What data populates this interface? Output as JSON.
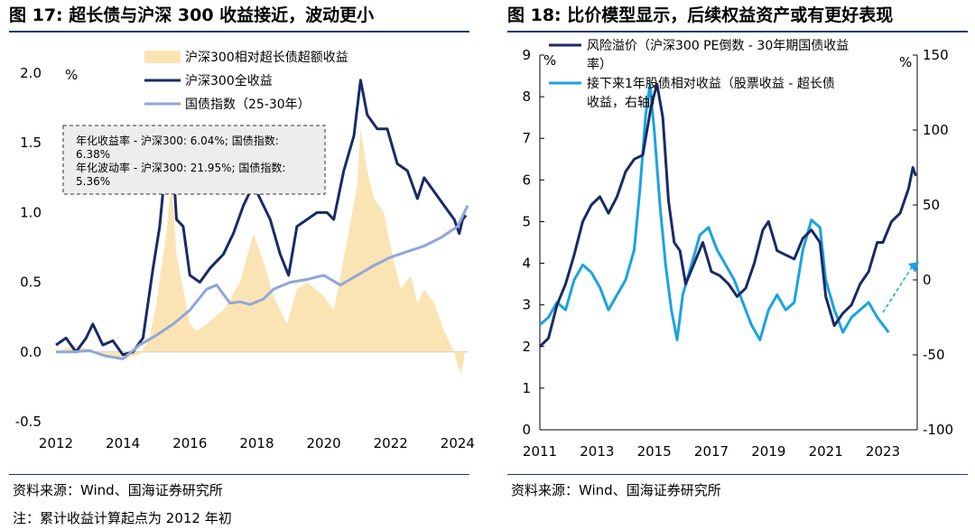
{
  "left": {
    "title": "图 17:  超长债与沪深 300 收益接近，波动更小",
    "source": "资料来源：Wind、国海证券研究所",
    "note": "注：累计收益计算起点为 2012 年初",
    "unit_label": "%",
    "annotation": [
      "年化收益率 - 沪深300:  6.04%;  国债指数:",
      "6.38%",
      "年化波动率 - 沪深300:  21.95%;  国债指数:",
      "5.36%"
    ]
  },
  "right": {
    "title": "图 18:  比价模型显示，后续权益资产或有更好表现",
    "source": "资料来源：Wind、国海证券研究所",
    "unit_left": "%",
    "unit_right": "%"
  },
  "colors": {
    "navy": "#1a2a66",
    "cyan": "#1aa3e0",
    "periwinkle": "#8fa6d8",
    "beige": "#fbe4b4",
    "rule": "#1f3a6e"
  },
  "chart_data": [
    {
      "type": "line",
      "xlabel": "",
      "ylabel": "%",
      "x_ticks": [
        "2012",
        "2014",
        "2016",
        "2018",
        "2020",
        "2022",
        "2024"
      ],
      "y_ticks": [
        "-0.5",
        "0.0",
        "0.5",
        "1.0",
        "1.5",
        "2.0"
      ],
      "xlim": [
        2012.0,
        2024.3
      ],
      "ylim": [
        -0.5,
        2.0
      ],
      "legend_position": "top-center",
      "series": [
        {
          "name": "沪深300相对超长债超额收益",
          "style": "area",
          "x": [
            2012.0,
            2012.5,
            2013.0,
            2013.5,
            2014.0,
            2014.5,
            2014.8,
            2015.0,
            2015.3,
            2015.45,
            2015.6,
            2015.8,
            2016.0,
            2016.2,
            2016.5,
            2017.0,
            2017.5,
            2017.9,
            2018.2,
            2018.5,
            2018.9,
            2019.2,
            2019.5,
            2020.0,
            2020.3,
            2020.7,
            2021.0,
            2021.1,
            2021.3,
            2021.5,
            2021.8,
            2022.0,
            2022.3,
            2022.6,
            2022.8,
            2023.0,
            2023.3,
            2023.6,
            2023.9,
            2024.0,
            2024.1,
            2024.2
          ],
          "values": [
            0.0,
            0.05,
            0.02,
            -0.02,
            -0.05,
            -0.02,
            0.1,
            0.35,
            0.85,
            1.25,
            0.7,
            0.45,
            0.2,
            0.15,
            0.2,
            0.3,
            0.5,
            0.85,
            0.65,
            0.4,
            0.2,
            0.45,
            0.5,
            0.4,
            0.3,
            0.8,
            1.2,
            1.6,
            1.3,
            1.1,
            1.0,
            0.75,
            0.45,
            0.55,
            0.35,
            0.45,
            0.35,
            0.15,
            0.0,
            -0.1,
            -0.15,
            -0.05
          ]
        },
        {
          "name": "沪深300全收益",
          "style": "line",
          "x": [
            2012.0,
            2012.3,
            2012.6,
            2012.9,
            2013.1,
            2013.4,
            2013.7,
            2014.0,
            2014.3,
            2014.6,
            2014.9,
            2015.1,
            2015.3,
            2015.45,
            2015.6,
            2015.8,
            2016.0,
            2016.3,
            2016.6,
            2017.0,
            2017.3,
            2017.6,
            2017.9,
            2018.1,
            2018.4,
            2018.7,
            2018.95,
            2019.2,
            2019.5,
            2019.8,
            2020.1,
            2020.3,
            2020.6,
            2020.9,
            2021.1,
            2021.3,
            2021.6,
            2021.9,
            2022.2,
            2022.5,
            2022.8,
            2023.0,
            2023.3,
            2023.6,
            2023.9,
            2024.05,
            2024.15,
            2024.25
          ],
          "values": [
            0.05,
            0.1,
            0.0,
            0.1,
            0.2,
            0.05,
            0.08,
            -0.02,
            0.0,
            0.1,
            0.6,
            0.9,
            1.4,
            1.55,
            0.95,
            0.9,
            0.55,
            0.5,
            0.6,
            0.7,
            0.85,
            1.05,
            1.2,
            1.1,
            0.95,
            0.7,
            0.55,
            0.9,
            0.95,
            1.0,
            1.0,
            0.95,
            1.3,
            1.55,
            1.95,
            1.7,
            1.6,
            1.6,
            1.35,
            1.3,
            1.1,
            1.25,
            1.15,
            1.05,
            0.95,
            0.85,
            0.95,
            0.98
          ]
        },
        {
          "name": "国债指数（25-30年）",
          "style": "line",
          "x": [
            2012.0,
            2012.5,
            2013.0,
            2013.5,
            2014.0,
            2014.5,
            2015.0,
            2015.5,
            2016.0,
            2016.5,
            2016.8,
            2017.2,
            2017.5,
            2017.8,
            2018.2,
            2018.5,
            2019.0,
            2019.5,
            2020.0,
            2020.5,
            2021.0,
            2021.5,
            2022.0,
            2022.5,
            2023.0,
            2023.5,
            2024.0,
            2024.3
          ],
          "values": [
            0.0,
            0.0,
            0.01,
            -0.03,
            -0.05,
            0.05,
            0.12,
            0.2,
            0.3,
            0.45,
            0.48,
            0.35,
            0.36,
            0.34,
            0.38,
            0.45,
            0.5,
            0.52,
            0.55,
            0.48,
            0.55,
            0.62,
            0.68,
            0.72,
            0.76,
            0.82,
            0.9,
            1.05
          ]
        }
      ]
    },
    {
      "type": "line",
      "xlabel": "",
      "ylabel": "%",
      "x_ticks": [
        "2011",
        "2013",
        "2015",
        "2017",
        "2019",
        "2021",
        "2023"
      ],
      "y_ticks_left": [
        "0",
        "1",
        "2",
        "3",
        "4",
        "5",
        "6",
        "7",
        "8",
        "9"
      ],
      "y_ticks_right": [
        "-100",
        "-50",
        "0",
        "50",
        "100",
        "150"
      ],
      "xlim": [
        2011.0,
        2024.2
      ],
      "ylim_left": [
        0,
        9
      ],
      "ylim_right": [
        -100,
        150
      ],
      "legend_position": "top-center",
      "series": [
        {
          "name": "风险溢价（沪深300 PE倒数 - 30年期国债收益率）",
          "axis": "left",
          "x": [
            2011.0,
            2011.3,
            2011.6,
            2011.9,
            2012.2,
            2012.5,
            2012.8,
            2013.1,
            2013.4,
            2013.7,
            2014.0,
            2014.3,
            2014.6,
            2014.9,
            2015.1,
            2015.3,
            2015.5,
            2015.7,
            2015.9,
            2016.1,
            2016.4,
            2016.7,
            2017.0,
            2017.3,
            2017.6,
            2017.9,
            2018.2,
            2018.5,
            2018.8,
            2019.0,
            2019.3,
            2019.6,
            2019.9,
            2020.2,
            2020.5,
            2020.8,
            2021.0,
            2021.3,
            2021.6,
            2021.9,
            2022.2,
            2022.5,
            2022.8,
            2023.0,
            2023.3,
            2023.6,
            2023.9,
            2024.05,
            2024.15
          ],
          "values": [
            2.0,
            2.2,
            3.0,
            3.5,
            4.2,
            5.0,
            5.4,
            5.6,
            5.2,
            5.6,
            6.2,
            6.5,
            6.6,
            7.8,
            8.3,
            7.5,
            5.5,
            4.5,
            4.3,
            3.5,
            4.0,
            4.5,
            3.8,
            3.7,
            3.5,
            3.2,
            3.4,
            4.0,
            4.8,
            5.0,
            4.3,
            4.2,
            4.1,
            4.6,
            4.8,
            4.5,
            3.2,
            2.5,
            2.8,
            3.0,
            3.5,
            3.8,
            4.5,
            4.5,
            5.0,
            5.2,
            5.8,
            6.3,
            6.1
          ]
        },
        {
          "name": "接下来1年股债相对收益（股票收益 - 超长债收益，右轴）",
          "axis": "right",
          "x": [
            2011.0,
            2011.3,
            2011.6,
            2011.9,
            2012.2,
            2012.5,
            2012.8,
            2013.1,
            2013.4,
            2013.7,
            2014.0,
            2014.3,
            2014.5,
            2014.7,
            2014.85,
            2015.0,
            2015.2,
            2015.4,
            2015.6,
            2015.8,
            2016.0,
            2016.3,
            2016.6,
            2016.9,
            2017.2,
            2017.5,
            2017.8,
            2018.1,
            2018.4,
            2018.7,
            2019.0,
            2019.3,
            2019.6,
            2019.9,
            2020.2,
            2020.5,
            2020.8,
            2021.0,
            2021.3,
            2021.6,
            2021.9,
            2022.2,
            2022.5,
            2022.8,
            2023.0,
            2023.2
          ],
          "values": [
            -30,
            -25,
            -15,
            -20,
            0,
            10,
            5,
            -5,
            -20,
            -10,
            0,
            20,
            60,
            110,
            130,
            100,
            50,
            10,
            -20,
            -40,
            -10,
            10,
            30,
            35,
            20,
            10,
            0,
            -15,
            -30,
            -40,
            -20,
            -10,
            -20,
            -15,
            20,
            40,
            35,
            0,
            -20,
            -35,
            -25,
            -20,
            -15,
            -25,
            -30,
            -35
          ]
        }
      ]
    }
  ]
}
